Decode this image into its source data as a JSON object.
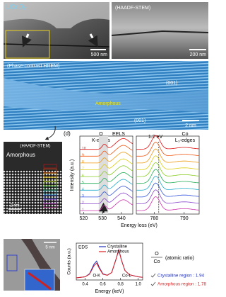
{
  "panels": {
    "a": {
      "title": "LiCoO₂",
      "scale": "500 nm"
    },
    "b": {
      "title": "(HAADF-STEM)",
      "scale": "200 nm"
    },
    "c": {
      "title": "(Phase-contrast HREM)",
      "labels": [
        "(001)",
        "Amorphous",
        "(001)"
      ],
      "scale": "2 nm"
    },
    "d_image": {
      "title": "(HAADF-STEM)",
      "label": "Amorphous",
      "scale": "2 nm"
    },
    "e_image": {
      "scale": "5 nm"
    }
  },
  "eels": {
    "panel_label": "(d)",
    "title": "EELS",
    "ylabel": "Intensity (a.u.)",
    "xlabel": "Energy loss (eV)",
    "o_edge": {
      "element": "O",
      "edge": "K-edges"
    },
    "co_edge": {
      "element": "Co",
      "edge": "L₃-edges"
    },
    "shift": "1.2 eV",
    "left": {
      "xlim": [
        518,
        546
      ],
      "xticks": [
        520,
        530,
        540
      ]
    },
    "right": {
      "xlim": [
        774,
        795
      ],
      "xticks": [
        780,
        790
      ]
    },
    "spectra": [
      {
        "label": "1",
        "color": "#cc33aa"
      },
      {
        "label": "2",
        "color": "#8844cc"
      },
      {
        "label": "3",
        "color": "#3355dd"
      },
      {
        "label": "4",
        "color": "#22aacc"
      },
      {
        "label": "5",
        "color": "#22aa55"
      },
      {
        "label": "6",
        "color": "#88cc22"
      },
      {
        "label": "7",
        "color": "#ddcc11"
      },
      {
        "label": "8",
        "color": "#ee9911"
      },
      {
        "label": "9",
        "color": "#ee5511"
      },
      {
        "label": "10",
        "color": "#dd1111"
      }
    ]
  },
  "eds": {
    "title": "EDS",
    "xlabel": "Energy (keV)",
    "ylabel": "Counts (a.u.)",
    "xlim": [
      0.3,
      1.05
    ],
    "ylim": [
      0,
      70
    ],
    "xticks": [
      0.4,
      0.6,
      0.8,
      {
        "value": 1,
        "label": "1.0"
      }
    ],
    "x": [
      0.3,
      0.4,
      0.45,
      0.5,
      0.53,
      0.56,
      0.6,
      0.65,
      0.7,
      0.75,
      0.78,
      0.81,
      0.85,
      0.9,
      1.0,
      1.05
    ],
    "series": [
      {
        "name": "Crystalline",
        "color": "#2233bb",
        "values": [
          4,
          6,
          12,
          30,
          36,
          24,
          12,
          9,
          14,
          40,
          58,
          38,
          18,
          10,
          6,
          5
        ]
      },
      {
        "name": "Amorphous",
        "color": "#dd2222",
        "values": [
          4,
          6,
          11,
          27,
          32,
          22,
          11,
          9,
          14,
          40,
          57,
          38,
          18,
          10,
          6,
          5
        ]
      }
    ],
    "peaks": [
      "O-K",
      "Co-L"
    ]
  },
  "ratio": {
    "numerator": "O",
    "denominator": "Co",
    "unit": "(atomic ratio)",
    "rows": [
      {
        "text": "Crystalline region : 1.94",
        "color": "#2233bb"
      },
      {
        "text": "Amorphous region : 1.78",
        "color": "#dd2222"
      }
    ]
  }
}
